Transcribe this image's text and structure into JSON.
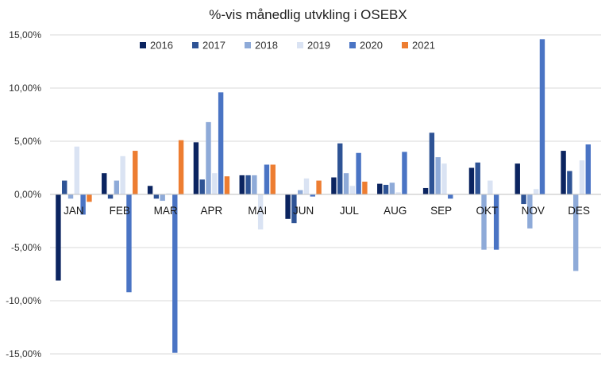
{
  "chart_data": {
    "type": "bar",
    "title": "%-vis månedlig utvkling i OSEBX",
    "xlabel": "",
    "ylabel": "",
    "ylim": [
      -15,
      15
    ],
    "yticks": [
      15,
      10,
      5,
      0,
      -5,
      -10,
      -15
    ],
    "ytick_labels": [
      "15,00%",
      "10,00%",
      "5,00%",
      "0,00%",
      "-5,00%",
      "-10,00%",
      "-15,00%"
    ],
    "legend_position": "top-center",
    "grid": true,
    "categories": [
      "JAN",
      "FEB",
      "MAR",
      "APR",
      "MAI",
      "JUN",
      "JUL",
      "AUG",
      "SEP",
      "OKT",
      "NOV",
      "DES"
    ],
    "series": [
      {
        "name": "2016",
        "color": "#0b2460",
        "values": [
          -8.1,
          2.0,
          0.8,
          4.9,
          1.8,
          -2.3,
          1.6,
          1.0,
          0.6,
          2.5,
          2.9,
          4.1
        ]
      },
      {
        "name": "2017",
        "color": "#2e5395",
        "values": [
          1.3,
          -0.4,
          -0.4,
          1.4,
          1.8,
          -2.7,
          4.8,
          0.9,
          5.8,
          3.0,
          -0.9,
          2.2
        ]
      },
      {
        "name": "2018",
        "color": "#8eaad8",
        "values": [
          -0.4,
          1.3,
          -0.6,
          6.8,
          1.8,
          0.4,
          2.0,
          1.1,
          3.5,
          -5.2,
          -3.2,
          -7.2
        ]
      },
      {
        "name": "2019",
        "color": "#dae3f3",
        "values": [
          4.5,
          3.6,
          0.1,
          2.0,
          -3.3,
          1.5,
          0.8,
          0.2,
          2.9,
          1.3,
          0.5,
          3.2
        ]
      },
      {
        "name": "2020",
        "color": "#4a74c4",
        "values": [
          -1.9,
          -9.2,
          -14.9,
          9.6,
          2.8,
          -0.2,
          3.9,
          4.0,
          -0.4,
          -5.2,
          14.6,
          4.7
        ]
      },
      {
        "name": "2021",
        "color": "#ed7d31",
        "values": [
          -0.7,
          4.1,
          5.1,
          1.7,
          2.8,
          1.3,
          1.2,
          null,
          null,
          null,
          null,
          null
        ]
      }
    ]
  }
}
